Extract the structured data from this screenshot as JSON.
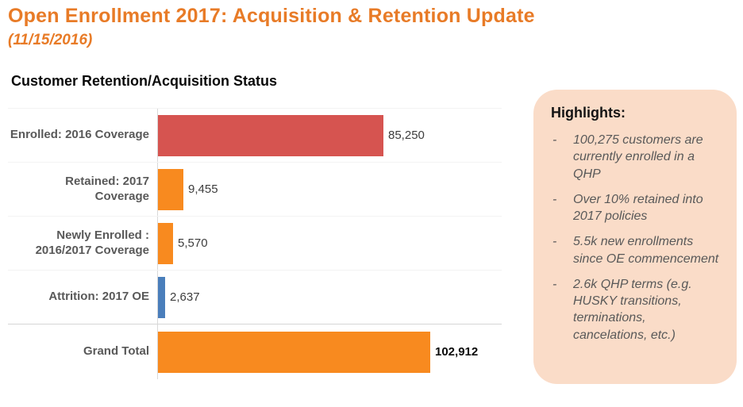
{
  "slide": {
    "title": "Open Enrollment 2017: Acquisition & Retention Update",
    "subtitle": "(11/15/2016)",
    "title_color": "#E87B27"
  },
  "chart": {
    "title": "Customer Retention/Acquisition Status"
  },
  "chart_data": {
    "type": "bar",
    "orientation": "horizontal",
    "title": "Customer Retention/Acquisition Status",
    "categories": [
      "Enrolled: 2016 Coverage",
      "Retained: 2017 Coverage",
      "Newly Enrolled : 2016/2017 Coverage",
      "Attrition: 2017 OE",
      "Grand Total"
    ],
    "values": [
      85250,
      9455,
      5570,
      2637,
      102912
    ],
    "value_labels": [
      "85,250",
      "9,455",
      "5,570",
      "2,637",
      "102,912"
    ],
    "bar_colors": [
      "#D65450",
      "#F88A1F",
      "#F88A1F",
      "#4A7EBB",
      "#F88A1F"
    ],
    "xlabel": "",
    "ylabel": "",
    "xlim": [
      0,
      102912
    ],
    "grid": false,
    "legend": false,
    "notes": "Grand Total row separated from the four rows above by a horizontal divider line; value labels shown at end of each bar; Grand Total value label bold"
  },
  "highlights": {
    "heading": "Highlights:",
    "bg_color": "#FADCC8",
    "bullet_marker": "-",
    "items": [
      "100,275 customers are currently enrolled in a QHP",
      "Over 10% retained into 2017 policies",
      "5.5k new enrollments since OE commencement",
      "2.6k QHP terms (e.g. HUSKY transitions, terminations, cancelations, etc.)"
    ]
  }
}
